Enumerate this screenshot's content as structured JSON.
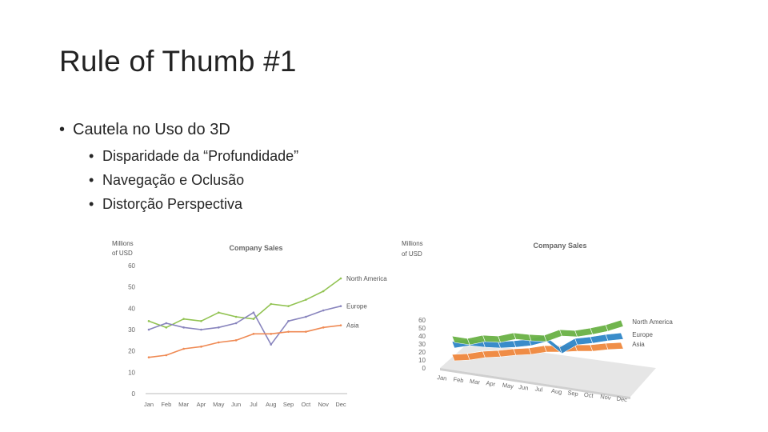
{
  "slide": {
    "title": "Rule of Thumb #1",
    "bullet_main": "Cautela no Uso do 3D",
    "sub_bullets": [
      "Disparidade da “Profundidade”",
      "Navegação e Oclusão",
      "Distorção Perspectiva"
    ]
  },
  "chart_data": [
    {
      "type": "line",
      "title": "Company Sales",
      "ylabel": "Millions of USD",
      "ylabel_lines": [
        "Millions",
        "of USD"
      ],
      "categories": [
        "Jan",
        "Feb",
        "Mar",
        "Apr",
        "May",
        "Jun",
        "Jul",
        "Aug",
        "Sep",
        "Oct",
        "Nov",
        "Dec"
      ],
      "yticks": [
        0,
        10,
        20,
        30,
        40,
        50,
        60
      ],
      "ylim": [
        0,
        60
      ],
      "legend": "inline-right",
      "series": [
        {
          "name": "North America",
          "color": "#92c353",
          "values": [
            34,
            31,
            35,
            34,
            38,
            36,
            35,
            42,
            41,
            44,
            48,
            54
          ]
        },
        {
          "name": "Europe",
          "color": "#8884bd",
          "values": [
            30,
            33,
            31,
            30,
            31,
            33,
            38,
            23,
            34,
            36,
            39,
            41
          ]
        },
        {
          "name": "Asia",
          "color": "#ef8a54",
          "values": [
            17,
            18,
            21,
            22,
            24,
            25,
            28,
            28,
            29,
            29,
            31,
            32
          ]
        }
      ]
    },
    {
      "type": "line",
      "title": "Company Sales",
      "ylabel": "Millions of USD",
      "ylabel_lines": [
        "Millions",
        "of USD"
      ],
      "categories": [
        "Jan",
        "Feb",
        "Mar",
        "Apr",
        "May",
        "Jun",
        "Jul",
        "Aug",
        "Sep",
        "Oct",
        "Nov",
        "Dec"
      ],
      "yticks": [
        0,
        10,
        20,
        30,
        40,
        50,
        60
      ],
      "ylim": [
        0,
        60
      ],
      "style": "3D ribbon",
      "legend": "inline-right",
      "series": [
        {
          "name": "North America",
          "color": "#6ab245",
          "values": [
            34,
            31,
            35,
            34,
            38,
            36,
            35,
            42,
            41,
            44,
            48,
            54
          ]
        },
        {
          "name": "Europe",
          "color": "#2f86c8",
          "values": [
            30,
            33,
            31,
            30,
            31,
            33,
            38,
            23,
            34,
            36,
            39,
            41
          ]
        },
        {
          "name": "Asia",
          "color": "#f0883e",
          "values": [
            17,
            18,
            21,
            22,
            24,
            25,
            28,
            28,
            29,
            29,
            31,
            32
          ]
        }
      ]
    }
  ]
}
